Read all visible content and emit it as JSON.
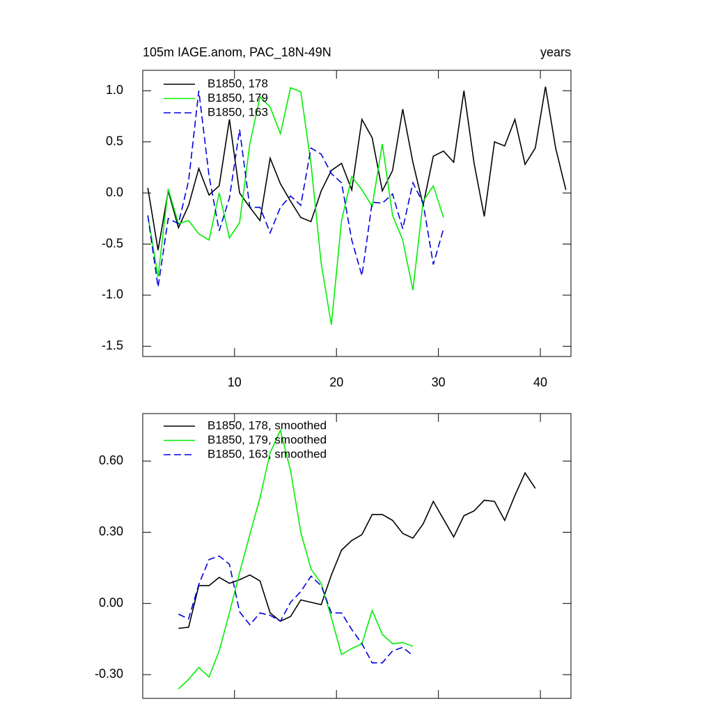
{
  "chart_data": [
    {
      "type": "line",
      "title": "105m IAGE.anom, PAC_18N-49N",
      "subtitle": "years",
      "xlim": [
        1,
        43
      ],
      "ylim": [
        -1.6,
        1.2
      ],
      "xticks": [
        10,
        20,
        30,
        40
      ],
      "xtick_labels_shown": true,
      "yticks": [
        {
          "value": 1.0,
          "label": "1.0"
        },
        {
          "value": 0.5,
          "label": "0.5"
        },
        {
          "value": 0.0,
          "label": "0.0"
        },
        {
          "value": -0.5,
          "label": "-0.5"
        },
        {
          "value": -1.0,
          "label": "-1.0"
        },
        {
          "value": -1.5,
          "label": "-1.5"
        }
      ],
      "series": [
        {
          "name": "B1850, 178",
          "color": "#000000",
          "dash": false,
          "x": [
            1.5,
            2.5,
            3.5,
            4.5,
            5.5,
            6.5,
            7.5,
            8.5,
            9.5,
            10.5,
            11.5,
            12.5,
            13.5,
            14.5,
            15.5,
            16.5,
            17.5,
            18.5,
            19.5,
            20.5,
            21.5,
            22.5,
            23.5,
            24.5,
            25.5,
            26.5,
            27.5,
            28.5,
            29.5,
            30.5,
            31.5,
            32.5,
            33.5,
            34.5,
            35.5,
            36.5,
            37.5,
            38.5,
            39.5,
            40.5,
            41.5,
            42.5
          ],
          "values": [
            0.05,
            -0.56,
            0.02,
            -0.34,
            -0.12,
            0.24,
            -0.02,
            0.07,
            0.72,
            0.0,
            -0.14,
            -0.27,
            0.34,
            0.09,
            -0.08,
            -0.24,
            -0.28,
            0.02,
            0.22,
            0.29,
            0.03,
            0.72,
            0.54,
            0.02,
            0.22,
            0.82,
            0.3,
            -0.12,
            0.36,
            0.41,
            0.3,
            1.0,
            0.29,
            -0.23,
            0.5,
            0.46,
            0.72,
            0.28,
            0.44,
            1.04,
            0.44,
            0.03
          ]
        },
        {
          "name": "B1850, 179",
          "color": "#00ee00",
          "dash": false,
          "x": [
            1.5,
            2.5,
            3.5,
            4.5,
            5.5,
            6.5,
            7.5,
            8.5,
            9.5,
            10.5,
            11.5,
            12.5,
            13.5,
            14.5,
            15.5,
            16.5,
            17.5,
            18.5,
            19.5,
            20.5,
            21.5,
            22.5,
            23.5,
            24.5,
            25.5,
            26.5,
            27.5,
            28.5,
            29.5,
            30.5
          ],
          "values": [
            -0.22,
            -0.82,
            0.04,
            -0.3,
            -0.27,
            -0.4,
            -0.46,
            0.0,
            -0.44,
            -0.29,
            0.48,
            0.94,
            0.84,
            0.58,
            1.03,
            0.99,
            0.29,
            -0.69,
            -1.29,
            -0.27,
            0.16,
            0.03,
            -0.13,
            0.48,
            -0.22,
            -0.46,
            -0.95,
            -0.08,
            0.07,
            -0.24
          ]
        },
        {
          "name": "B1850, 163",
          "color": "#0000dd",
          "dash": true,
          "x": [
            1.5,
            2.5,
            3.5,
            4.5,
            5.5,
            6.5,
            7.5,
            8.5,
            9.5,
            10.5,
            11.5,
            12.5,
            13.5,
            14.5,
            15.5,
            16.5,
            17.5,
            18.5,
            19.5,
            20.5,
            21.5,
            22.5,
            23.5,
            24.5,
            25.5,
            26.5,
            27.5,
            28.5,
            29.5,
            30.5
          ],
          "values": [
            -0.22,
            -0.92,
            -0.25,
            -0.3,
            0.12,
            1.0,
            0.17,
            -0.37,
            -0.05,
            0.62,
            -0.14,
            -0.14,
            -0.39,
            -0.14,
            -0.03,
            -0.12,
            0.44,
            0.38,
            0.19,
            0.1,
            -0.46,
            -0.81,
            -0.09,
            -0.1,
            -0.01,
            -0.35,
            0.1,
            -0.1,
            -0.7,
            -0.35
          ]
        }
      ]
    },
    {
      "type": "line",
      "xlim": [
        1,
        43
      ],
      "ylim": [
        -0.4,
        0.8
      ],
      "xticks": [
        10,
        20,
        30,
        40
      ],
      "xtick_labels_shown": false,
      "yticks": [
        {
          "value": 0.6,
          "label": "0.60"
        },
        {
          "value": 0.3,
          "label": "0.30"
        },
        {
          "value": 0.0,
          "label": "0.00"
        },
        {
          "value": -0.3,
          "label": "-0.30"
        }
      ],
      "series": [
        {
          "name": "B1850, 178, smoothed",
          "color": "#000000",
          "dash": false,
          "x": [
            4.5,
            5.5,
            6.5,
            7.5,
            8.5,
            9.5,
            10.5,
            11.5,
            12.5,
            13.5,
            14.5,
            15.5,
            16.5,
            17.5,
            18.5,
            19.5,
            20.5,
            21.5,
            22.5,
            23.5,
            24.5,
            25.5,
            26.5,
            27.5,
            28.5,
            29.5,
            30.5,
            31.5,
            32.5,
            33.5,
            34.5,
            35.5,
            36.5,
            37.5,
            38.5,
            39.5
          ],
          "values": [
            -0.105,
            -0.1,
            0.075,
            0.075,
            0.11,
            0.085,
            0.1,
            0.12,
            0.095,
            -0.04,
            -0.075,
            -0.055,
            0.015,
            0.005,
            -0.005,
            0.12,
            0.225,
            0.265,
            0.29,
            0.375,
            0.375,
            0.35,
            0.295,
            0.275,
            0.335,
            0.43,
            0.355,
            0.28,
            0.37,
            0.39,
            0.435,
            0.43,
            0.35,
            0.455,
            0.55,
            0.485
          ]
        },
        {
          "name": "B1850, 179, smoothed",
          "color": "#00ee00",
          "dash": false,
          "x": [
            4.5,
            5.5,
            6.5,
            7.5,
            8.5,
            9.5,
            10.5,
            11.5,
            12.5,
            13.5,
            14.5,
            15.5,
            16.5,
            17.5,
            18.5,
            19.5,
            20.5,
            21.5,
            22.5,
            23.5,
            24.5,
            25.5,
            26.5,
            27.5
          ],
          "values": [
            -0.36,
            -0.32,
            -0.27,
            -0.31,
            -0.2,
            -0.04,
            0.13,
            0.29,
            0.445,
            0.635,
            0.73,
            0.56,
            0.3,
            0.145,
            0.085,
            -0.06,
            -0.215,
            -0.19,
            -0.17,
            -0.03,
            -0.13,
            -0.17,
            -0.165,
            -0.18
          ]
        },
        {
          "name": "B1850, 163, smoothed",
          "color": "#0000dd",
          "dash": true,
          "x": [
            4.5,
            5.5,
            6.5,
            7.5,
            8.5,
            9.5,
            10.5,
            11.5,
            12.5,
            13.5,
            14.5,
            15.5,
            16.5,
            17.5,
            18.5,
            19.5,
            20.5,
            21.5,
            22.5,
            23.5,
            24.5,
            25.5,
            26.5,
            27.5
          ],
          "values": [
            -0.045,
            -0.065,
            0.08,
            0.185,
            0.2,
            0.165,
            -0.035,
            -0.09,
            -0.04,
            -0.05,
            -0.075,
            0.005,
            0.05,
            0.115,
            0.075,
            -0.04,
            -0.04,
            -0.11,
            -0.17,
            -0.25,
            -0.25,
            -0.2,
            -0.185,
            -0.22
          ]
        }
      ]
    }
  ]
}
